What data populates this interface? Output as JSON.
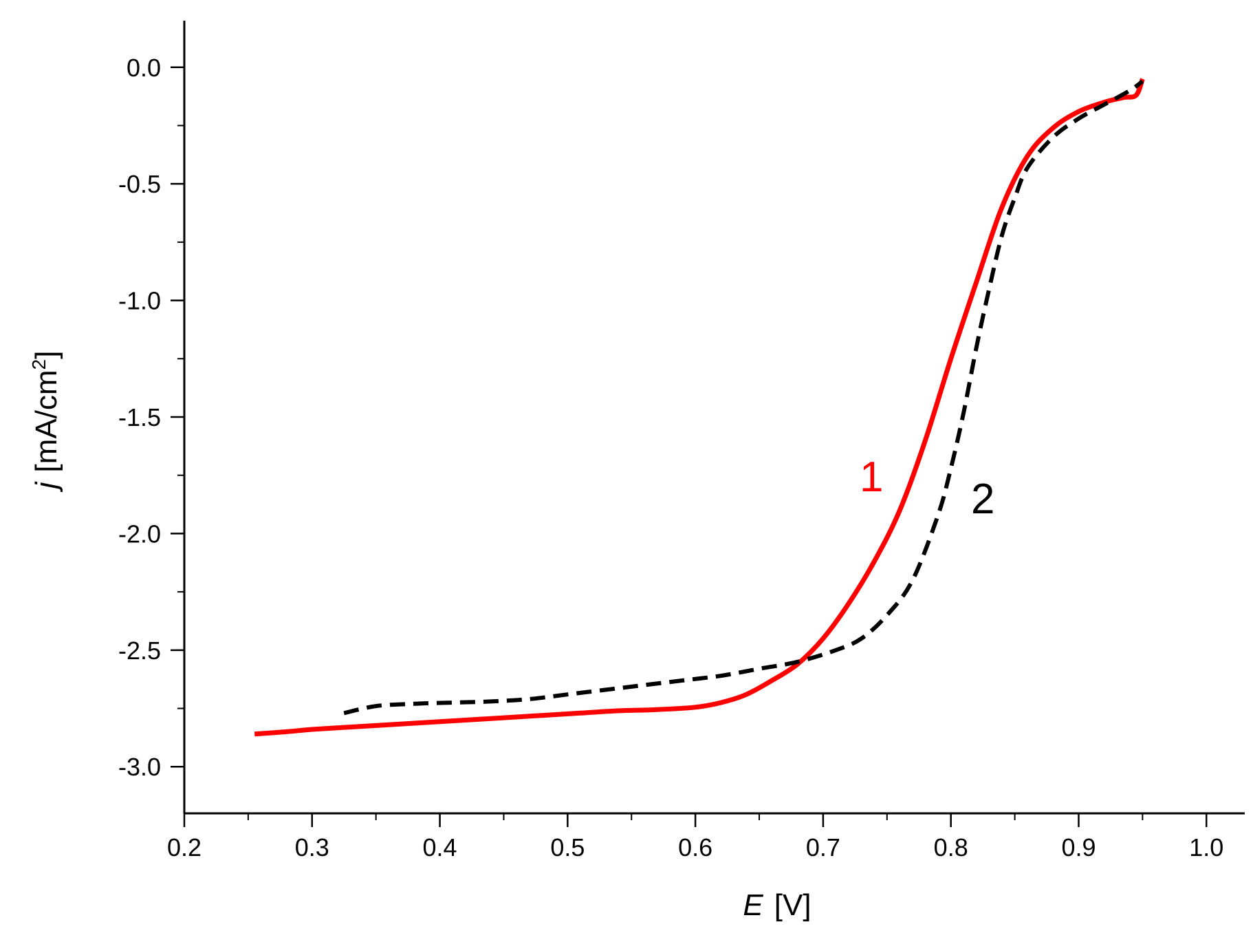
{
  "chart_data": {
    "type": "line",
    "title": "",
    "xlabel": {
      "symbol": "E",
      "unit": "[V]"
    },
    "ylabel": {
      "symbol": "j",
      "unit_prefix": "[mA/cm",
      "unit_superscript": "2",
      "unit_suffix": "]"
    },
    "xlim": [
      0.2,
      1.03
    ],
    "ylim": [
      -3.2,
      0.2
    ],
    "x_ticks": [
      0.2,
      0.3,
      0.4,
      0.5,
      0.6,
      0.7,
      0.8,
      0.9,
      1.0
    ],
    "x_tick_labels": [
      "0.2",
      "0.3",
      "0.4",
      "0.5",
      "0.6",
      "0.7",
      "0.8",
      "0.9",
      "1.0"
    ],
    "y_ticks": [
      0.0,
      -0.5,
      -1.0,
      -1.5,
      -2.0,
      -2.5,
      -3.0
    ],
    "y_tick_labels": [
      "0.0",
      "-0.5",
      "-1.0",
      "-1.5",
      "-2.0",
      "-2.5",
      "-3.0"
    ],
    "x_minor_step": 0.05,
    "y_minor_step": 0.25,
    "grid": false,
    "series": [
      {
        "label": "1",
        "color": "#ff0000",
        "style": "solid",
        "x": [
          0.255,
          0.28,
          0.3,
          0.33,
          0.36,
          0.39,
          0.42,
          0.45,
          0.48,
          0.51,
          0.54,
          0.57,
          0.6,
          0.62,
          0.64,
          0.66,
          0.68,
          0.7,
          0.72,
          0.74,
          0.76,
          0.78,
          0.8,
          0.82,
          0.84,
          0.86,
          0.88,
          0.9,
          0.92,
          0.935,
          0.945,
          0.95
        ],
        "y": [
          -2.86,
          -2.85,
          -2.84,
          -2.83,
          -2.82,
          -2.81,
          -2.8,
          -2.79,
          -2.78,
          -2.77,
          -2.76,
          -2.755,
          -2.745,
          -2.725,
          -2.69,
          -2.63,
          -2.56,
          -2.45,
          -2.3,
          -2.12,
          -1.9,
          -1.6,
          -1.25,
          -0.92,
          -0.6,
          -0.38,
          -0.26,
          -0.19,
          -0.15,
          -0.13,
          -0.12,
          -0.05
        ]
      },
      {
        "label": "2",
        "color": "#000000",
        "style": "dashed",
        "x": [
          0.325,
          0.35,
          0.38,
          0.41,
          0.44,
          0.47,
          0.5,
          0.53,
          0.56,
          0.59,
          0.62,
          0.65,
          0.68,
          0.71,
          0.73,
          0.75,
          0.77,
          0.79,
          0.8,
          0.81,
          0.82,
          0.83,
          0.84,
          0.85,
          0.86,
          0.88,
          0.9,
          0.92,
          0.94,
          0.95
        ],
        "y": [
          -2.77,
          -2.74,
          -2.73,
          -2.725,
          -2.72,
          -2.71,
          -2.69,
          -2.67,
          -2.65,
          -2.63,
          -2.61,
          -2.58,
          -2.55,
          -2.5,
          -2.45,
          -2.35,
          -2.2,
          -1.92,
          -1.72,
          -1.48,
          -1.2,
          -0.95,
          -0.72,
          -0.56,
          -0.43,
          -0.3,
          -0.22,
          -0.16,
          -0.1,
          -0.06
        ]
      }
    ]
  }
}
